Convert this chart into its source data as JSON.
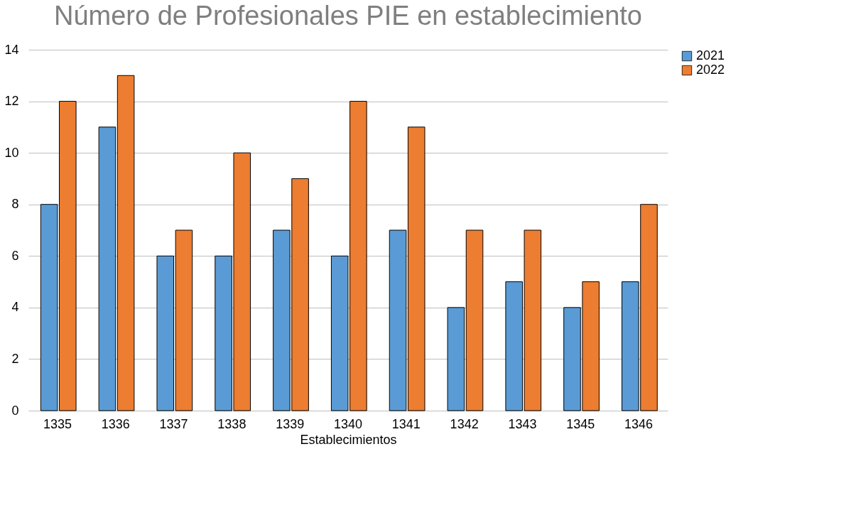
{
  "chart_data": {
    "type": "bar",
    "title": "Número de Profesionales PIE en establecimiento",
    "xlabel": "Establecimientos",
    "categories": [
      "1335",
      "1336",
      "1337",
      "1338",
      "1339",
      "1340",
      "1341",
      "1342",
      "1343",
      "1345",
      "1346"
    ],
    "series": [
      {
        "name": "2021",
        "color": "#5b9bd5",
        "values": [
          8,
          11,
          6,
          6,
          7,
          6,
          7,
          4,
          5,
          4,
          5
        ]
      },
      {
        "name": "2022",
        "color": "#ed7d31",
        "values": [
          12,
          13,
          7,
          10,
          9,
          12,
          11,
          7,
          7,
          5,
          8
        ]
      }
    ],
    "ylim": [
      0,
      14
    ],
    "yticks": [
      0,
      2,
      4,
      6,
      8,
      10,
      12,
      14
    ],
    "grid": "y",
    "legend": "right"
  }
}
